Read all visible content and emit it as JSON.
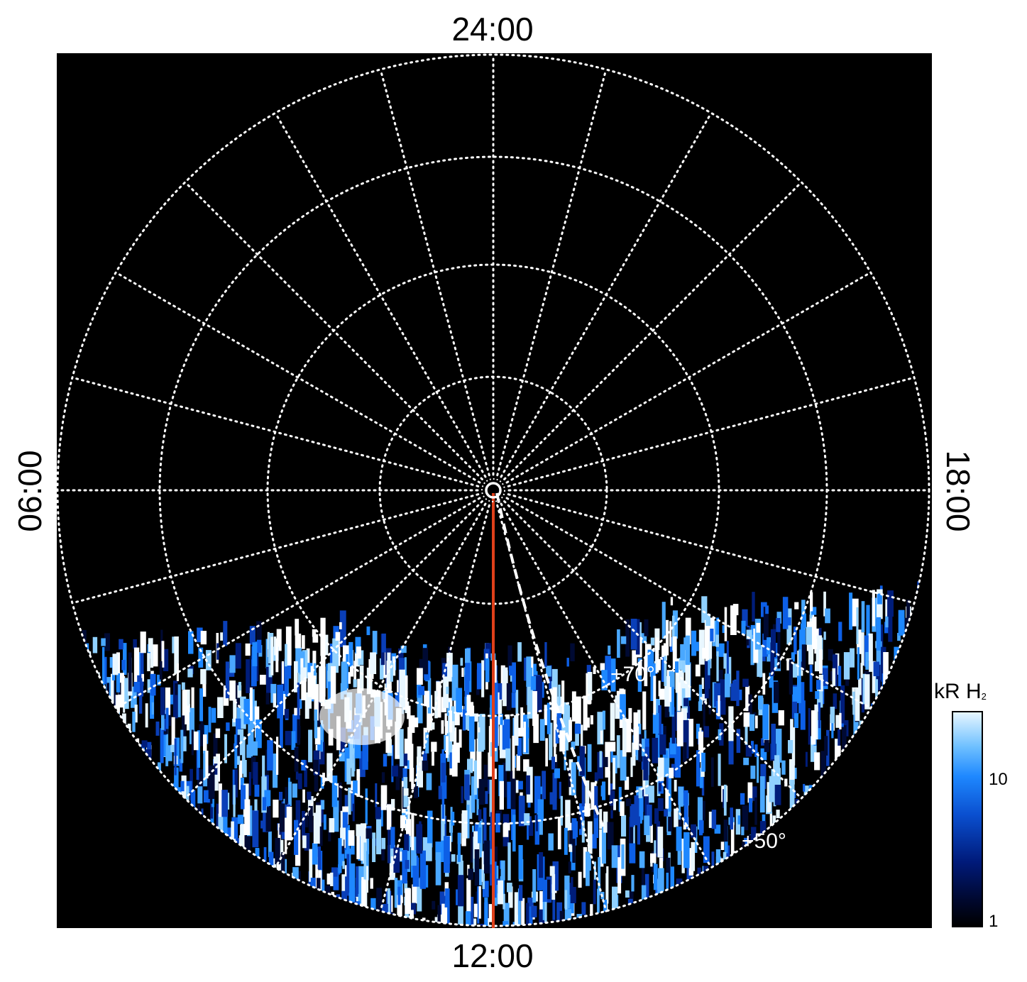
{
  "local_time_labels": {
    "top": "24:00",
    "bottom": "12:00",
    "left": "06:00",
    "right": "18:00"
  },
  "latitude_labels": [
    "+70°",
    "+50°"
  ],
  "colorbar": {
    "title": "kR H",
    "title_subscript": "2",
    "scale": "log",
    "range": [
      1,
      25
    ],
    "ticks": [
      {
        "value": 10,
        "label": "10"
      },
      {
        "value": 1,
        "label": "1"
      }
    ]
  },
  "colors": {
    "background": "#000000",
    "grid": "#ffffff",
    "noon_meridian": "#e0401a"
  }
}
